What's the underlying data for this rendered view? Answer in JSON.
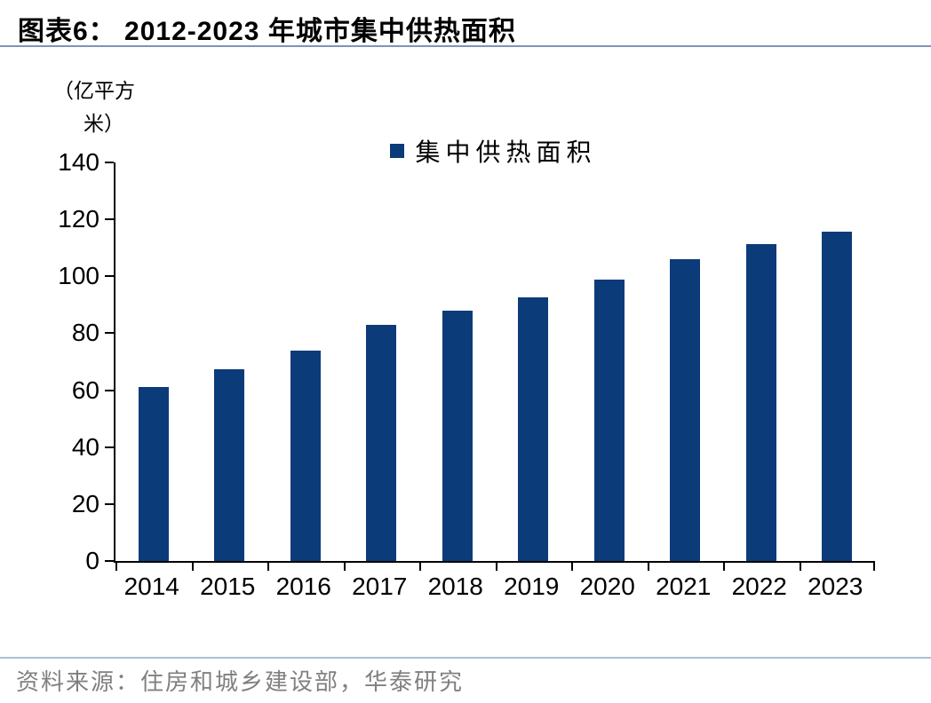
{
  "header": {
    "title": "图表6： 2012-2023 年城市集中供热面积"
  },
  "axis_unit": {
    "line1": "（亿平方",
    "line2": "米）"
  },
  "legend": {
    "label": "集中供热面积"
  },
  "chart_data": {
    "type": "bar",
    "title": "2012-2023 年城市集中供热面积",
    "categories": [
      "2014",
      "2015",
      "2016",
      "2017",
      "2018",
      "2019",
      "2020",
      "2021",
      "2022",
      "2023"
    ],
    "values": [
      61.1,
      67.2,
      73.9,
      83.1,
      87.8,
      92.5,
      98.8,
      106.0,
      111.3,
      115.6
    ],
    "series_name": "集中供热面积",
    "xlabel": "",
    "ylabel": "（亿平方米）",
    "ylim": [
      0,
      140
    ],
    "yticks": [
      0,
      20,
      40,
      60,
      80,
      100,
      120,
      140
    ],
    "grid": false,
    "legend_position": "top-center",
    "bar_color": "#0c3b7a"
  },
  "footer": {
    "source": "资料来源：住房和城乡建设部，华泰研究"
  },
  "colors": {
    "bar": "#0c3b7a",
    "title_rule": "#7b96b6",
    "footer_rule": "#a9c1d6",
    "source_text": "#808080",
    "axis": "#000000"
  }
}
